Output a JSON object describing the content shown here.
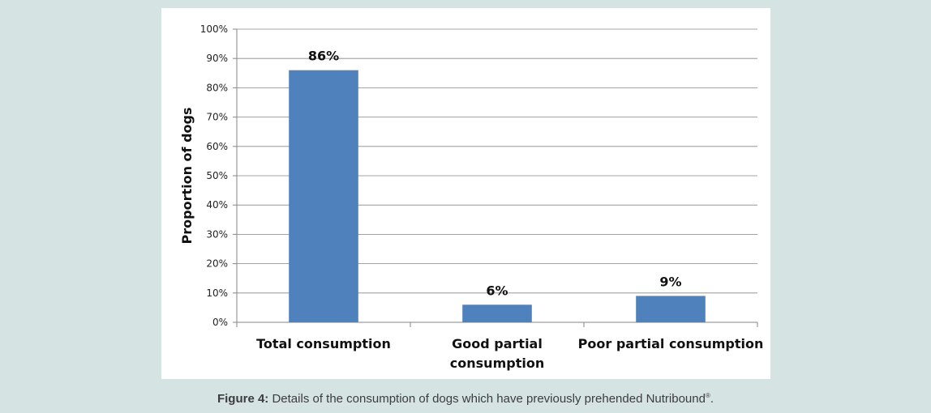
{
  "chart_data": {
    "type": "bar",
    "categories": [
      [
        "Total consumption"
      ],
      [
        "Good partial",
        "consumption"
      ],
      [
        "Poor partial consumption"
      ]
    ],
    "values": [
      86,
      6,
      9
    ],
    "data_labels": [
      "86%",
      "6%",
      "9%"
    ],
    "ylabel": "Proportion of dogs",
    "xlabel": "",
    "ylim": [
      0,
      100
    ],
    "yticks": [
      "0%",
      "10%",
      "20%",
      "30%",
      "40%",
      "50%",
      "60%",
      "70%",
      "80%",
      "90%",
      "100%"
    ],
    "grid": true,
    "legend": "none",
    "bar_color": "#4f81bd"
  },
  "caption": {
    "label": "Figure 4:",
    "text": " Details of the consumption of dogs which have previously prehended Nutribound",
    "registered_mark": "®",
    "end": "."
  }
}
